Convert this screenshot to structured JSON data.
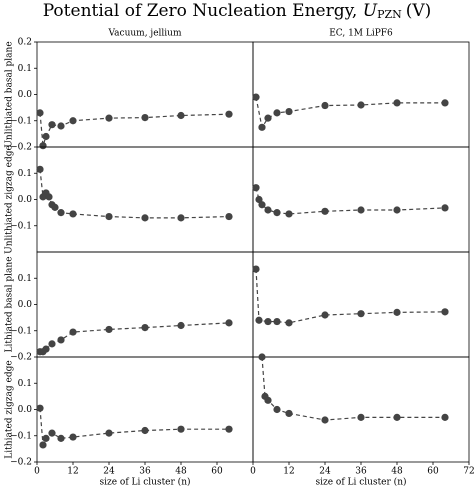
{
  "figure": {
    "title": "Potential of Zero Nucleation Energy,",
    "symbol": "U",
    "subscript": "PZN",
    "unit": "(V)"
  },
  "chart_data": [
    {
      "type": "line",
      "title": "Vacuum, jellium",
      "ylabel": "Unlithiated basal plane",
      "color": "#444444",
      "x": [
        1,
        2,
        3,
        5,
        8,
        12,
        24,
        36,
        48,
        64
      ],
      "values": [
        -0.07,
        -0.195,
        -0.16,
        -0.115,
        -0.12,
        -0.1,
        -0.09,
        -0.088,
        -0.08,
        -0.075
      ],
      "xlim": [
        0,
        72
      ],
      "ylim": [
        -0.2,
        0.2
      ],
      "yticks": [
        0.2,
        0.1,
        {
          "value": 0,
          "label": "0.0"
        },
        {
          "value": -0.1,
          "label": "−0.1"
        },
        {
          "value": -0.2,
          "label": "−0.2"
        }
      ]
    },
    {
      "type": "line",
      "title": "EC, 1M LiPF6",
      "color": "#444444",
      "x": [
        1,
        3,
        5,
        8,
        12,
        24,
        36,
        48,
        64
      ],
      "values": [
        -0.01,
        -0.125,
        -0.09,
        -0.07,
        -0.065,
        -0.042,
        -0.04,
        -0.032,
        -0.032
      ],
      "xlim": [
        0,
        72
      ],
      "ylim": [
        -0.2,
        0.2
      ]
    },
    {
      "type": "line",
      "ylabel": "Unlithiated zigzag edge",
      "color": "#444444",
      "x": [
        1,
        2,
        3,
        4,
        5,
        6,
        8,
        12,
        24,
        36,
        48,
        64
      ],
      "values": [
        0.115,
        0.01,
        0.025,
        0.01,
        -0.02,
        -0.03,
        -0.05,
        -0.055,
        -0.065,
        -0.07,
        -0.07,
        -0.065
      ],
      "xlim": [
        0,
        72
      ],
      "ylim": [
        -0.2,
        0.2
      ],
      "yticks": [
        0.1,
        {
          "value": 0,
          "label": "0.0"
        },
        {
          "value": -0.1,
          "label": "−0.1"
        }
      ]
    },
    {
      "type": "line",
      "color": "#444444",
      "x": [
        1,
        2,
        3,
        5,
        8,
        12,
        24,
        36,
        48,
        64
      ],
      "values": [
        0.045,
        0.0,
        -0.02,
        -0.04,
        -0.05,
        -0.055,
        -0.045,
        -0.04,
        -0.04,
        -0.032
      ],
      "xlim": [
        0,
        72
      ],
      "ylim": [
        -0.2,
        0.2
      ]
    },
    {
      "type": "line",
      "ylabel": "Lithiated basal plane",
      "color": "#444444",
      "x": [
        1,
        2,
        3,
        5,
        8,
        12,
        24,
        36,
        48,
        64
      ],
      "values": [
        -0.18,
        -0.18,
        -0.17,
        -0.15,
        -0.135,
        -0.105,
        -0.095,
        -0.088,
        -0.08,
        -0.07
      ],
      "xlim": [
        0,
        72
      ],
      "ylim": [
        -0.2,
        0.2
      ],
      "yticks": [
        0.1,
        {
          "value": 0,
          "label": "0.0"
        },
        {
          "value": -0.1,
          "label": "−0.1"
        },
        {
          "value": -0.2,
          "label": "−0.2"
        }
      ]
    },
    {
      "type": "line",
      "color": "#444444",
      "x": [
        1,
        2,
        5,
        8,
        12,
        24,
        36,
        48,
        64
      ],
      "values": [
        0.135,
        -0.06,
        -0.065,
        -0.065,
        -0.07,
        -0.04,
        -0.035,
        -0.03,
        -0.028
      ],
      "xlim": [
        0,
        72
      ],
      "ylim": [
        -0.2,
        0.2
      ]
    },
    {
      "type": "line",
      "ylabel": "Lithiated zigzag edge",
      "xlabel": "size of Li cluster (n)",
      "color": "#444444",
      "x": [
        1,
        2,
        3,
        5,
        8,
        12,
        24,
        36,
        48,
        64
      ],
      "values": [
        0.005,
        -0.135,
        -0.11,
        -0.09,
        -0.11,
        -0.105,
        -0.09,
        -0.08,
        -0.075,
        -0.075
      ],
      "xlim": [
        0,
        72
      ],
      "ylim": [
        -0.2,
        0.2
      ],
      "xticks": [
        0,
        12,
        24,
        36,
        48,
        60
      ],
      "yticks": [
        0.1,
        {
          "value": 0,
          "label": "0.0"
        },
        {
          "value": -0.1,
          "label": "−0.1"
        },
        {
          "value": -0.2,
          "label": "−0.2"
        }
      ]
    },
    {
      "type": "line",
      "xlabel": "size of Li cluster (n)",
      "color": "#444444",
      "x": [
        3,
        4,
        5,
        8,
        12,
        24,
        36,
        48,
        64
      ],
      "values": [
        0.2,
        0.05,
        0.035,
        0.0,
        -0.015,
        -0.04,
        -0.03,
        -0.03,
        -0.03
      ],
      "xlim": [
        0,
        72
      ],
      "ylim": [
        -0.2,
        0.2
      ],
      "xticks": [
        0,
        12,
        24,
        36,
        48,
        60,
        72
      ]
    }
  ]
}
